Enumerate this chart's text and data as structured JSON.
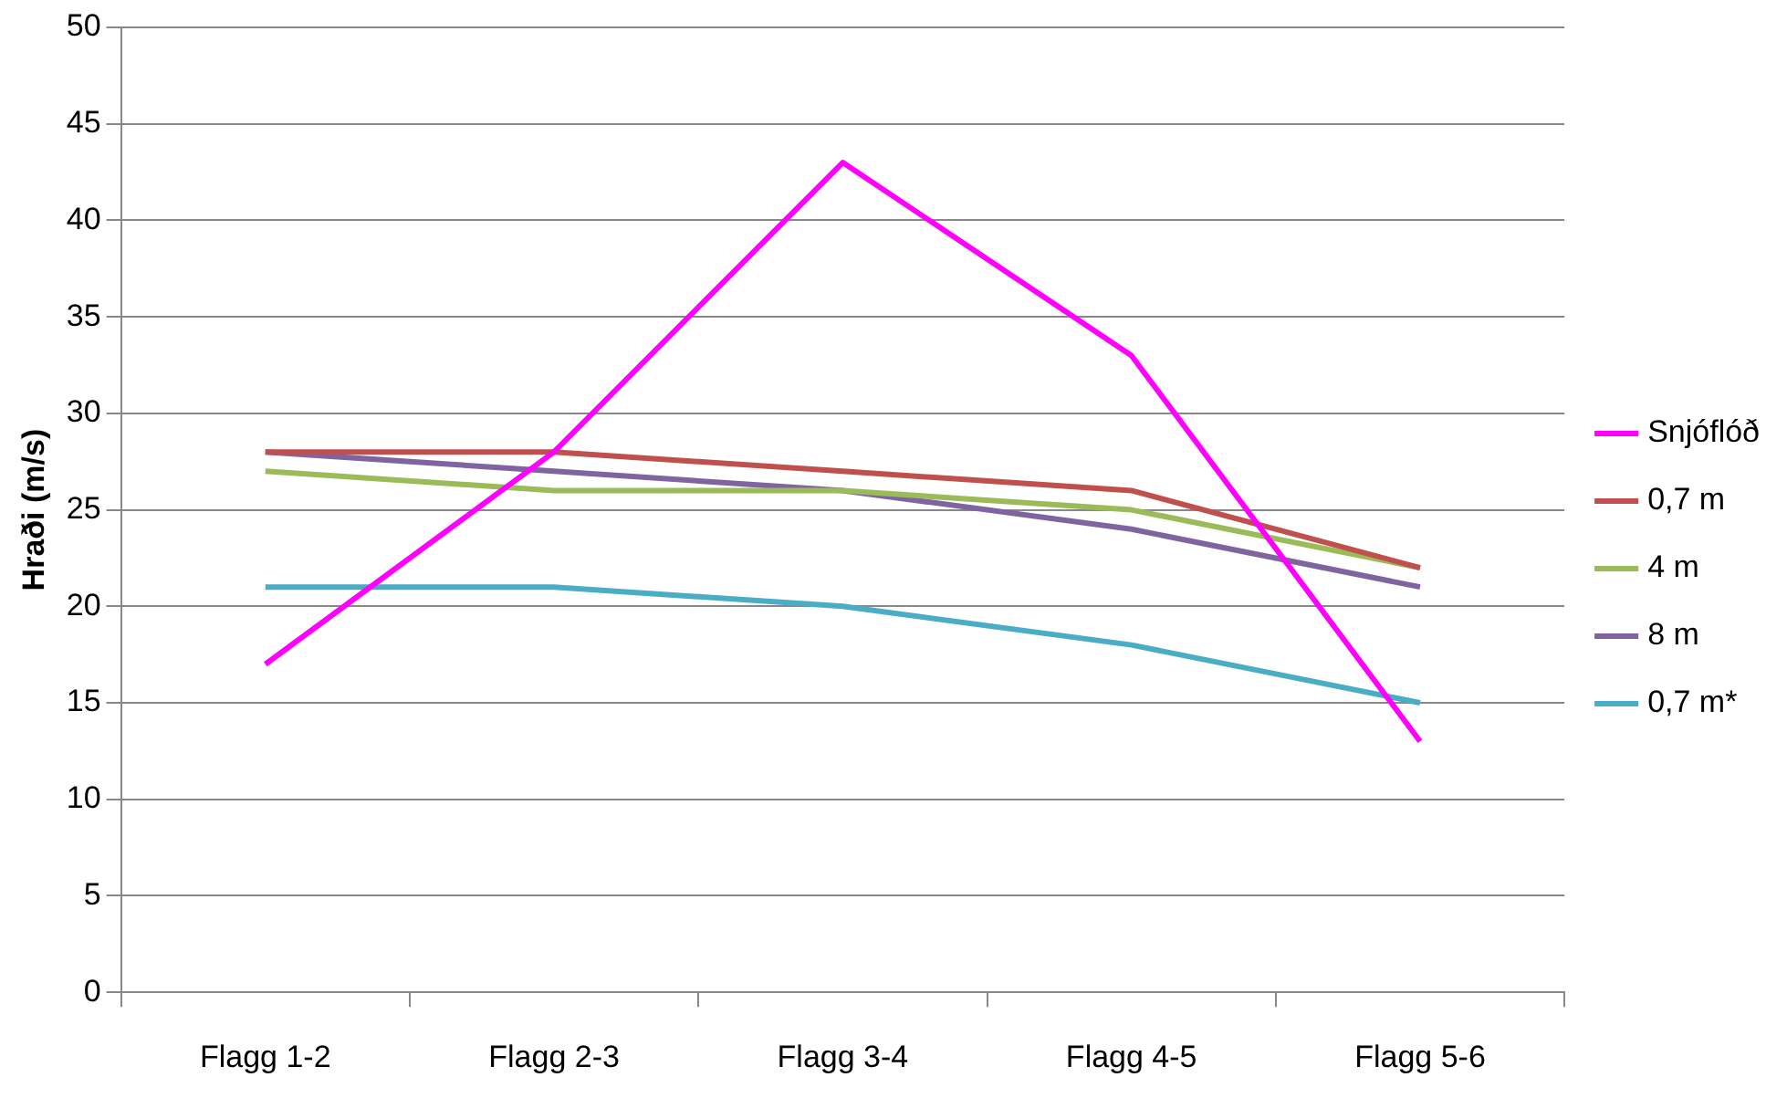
{
  "chart_data": {
    "type": "line",
    "ylabel": "Hraði (m/s)",
    "categories": [
      "Flagg 1-2",
      "Flagg 2-3",
      "Flagg 3-4",
      "Flagg 4-5",
      "Flagg 5-6"
    ],
    "series": [
      {
        "name": "Snjóflóð",
        "color": "#ff00ff",
        "values": [
          17,
          28,
          43,
          33,
          13
        ]
      },
      {
        "name": "0,7 m",
        "color": "#c0504d",
        "values": [
          28,
          28,
          27,
          26,
          22
        ]
      },
      {
        "name": "4 m",
        "color": "#9bbb59",
        "values": [
          27,
          26,
          26,
          25,
          22
        ]
      },
      {
        "name": "8 m",
        "color": "#8064a2",
        "values": [
          28,
          27,
          26,
          24,
          21
        ]
      },
      {
        "name": "0,7 m*",
        "color": "#4bacc6",
        "values": [
          21,
          21,
          20,
          18,
          15
        ]
      }
    ],
    "ylim": [
      0,
      50
    ],
    "yticks": [
      0,
      5,
      10,
      15,
      20,
      25,
      30,
      35,
      40,
      45,
      50
    ],
    "grid": "y",
    "legend": "right",
    "marker": "none",
    "line_style": "solid"
  }
}
